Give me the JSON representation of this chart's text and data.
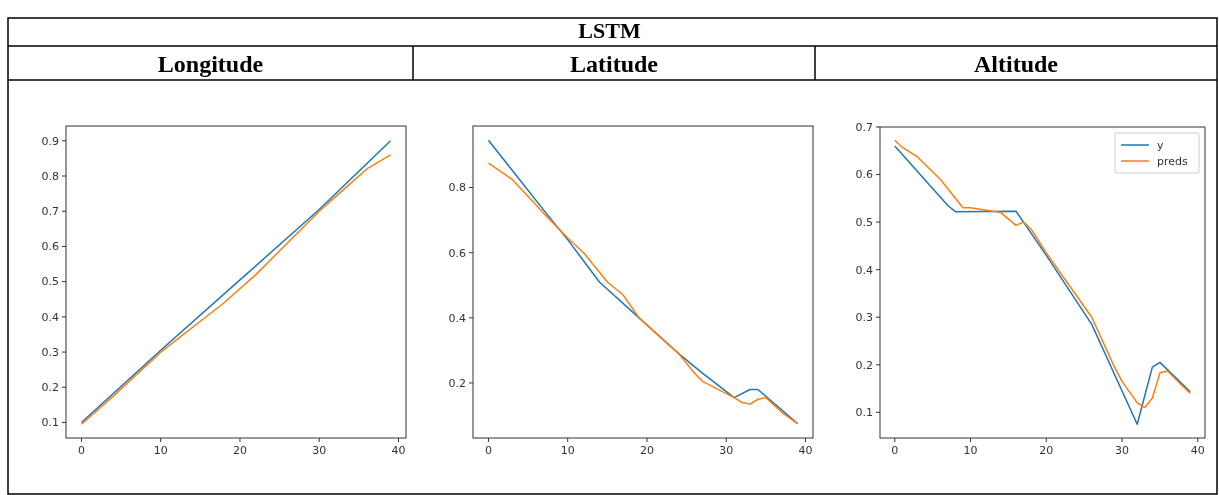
{
  "chart_data": [
    {
      "type": "line",
      "title": "Longitude",
      "annotations": [
        "LSTM"
      ],
      "xlim": [
        -1.95,
        40.95
      ],
      "xticks": [
        0,
        10,
        20,
        30,
        40
      ],
      "ylim": [
        0.056,
        0.942
      ],
      "yticks": [
        0.1,
        0.2,
        0.3,
        0.4,
        0.5,
        0.6,
        0.7,
        0.8,
        0.9
      ],
      "grid": false,
      "legend": false,
      "series": [
        {
          "color": "#1f77b4",
          "x": [
            0,
            10,
            20,
            30,
            39
          ],
          "values": [
            0.1,
            0.305,
            0.505,
            0.705,
            0.9
          ]
        },
        {
          "color": "#ff7f0e",
          "x": [
            0,
            4,
            10,
            18,
            22,
            30,
            33,
            36,
            39
          ],
          "values": [
            0.095,
            0.175,
            0.3,
            0.44,
            0.52,
            0.7,
            0.76,
            0.82,
            0.86
          ]
        }
      ]
    },
    {
      "type": "line",
      "title": "Latitude",
      "xlim": [
        -1.95,
        40.95
      ],
      "xticks": [
        0,
        10,
        20,
        30,
        40
      ],
      "ylim": [
        0.031,
        0.989
      ],
      "yticks": [
        0.2,
        0.4,
        0.6,
        0.8
      ],
      "grid": false,
      "legend": false,
      "series": [
        {
          "color": "#1f77b4",
          "x": [
            0,
            7,
            10,
            14,
            19,
            24,
            27,
            31,
            33,
            34,
            39
          ],
          "values": [
            0.945,
            0.73,
            0.64,
            0.51,
            0.4,
            0.29,
            0.23,
            0.155,
            0.18,
            0.18,
            0.075
          ]
        },
        {
          "color": "#ff7f0e",
          "x": [
            0,
            3,
            7,
            10,
            12,
            15,
            17,
            19,
            24,
            26,
            27,
            31,
            32,
            33,
            34,
            35,
            37,
            39
          ],
          "values": [
            0.875,
            0.825,
            0.72,
            0.645,
            0.6,
            0.51,
            0.47,
            0.4,
            0.29,
            0.23,
            0.205,
            0.155,
            0.14,
            0.135,
            0.15,
            0.155,
            0.11,
            0.075
          ]
        }
      ]
    },
    {
      "type": "line",
      "title": "Altitude",
      "xlim": [
        -1.95,
        40.95
      ],
      "xticks": [
        0,
        10,
        20,
        30,
        40
      ],
      "ylim": [
        0.046,
        0.7
      ],
      "yticks": [
        0.1,
        0.2,
        0.3,
        0.4,
        0.5,
        0.6,
        0.7
      ],
      "grid": false,
      "legend": "top right",
      "series": [
        {
          "name": "y",
          "color": "#1f77b4",
          "x": [
            0,
            7,
            8,
            16,
            20,
            26,
            32,
            34,
            35,
            39
          ],
          "values": [
            0.66,
            0.535,
            0.522,
            0.523,
            0.43,
            0.285,
            0.075,
            0.195,
            0.205,
            0.143
          ]
        },
        {
          "name": "preds",
          "color": "#ff7f0e",
          "x": [
            0,
            1,
            3,
            6,
            9,
            10,
            14,
            16,
            17,
            18,
            20,
            26,
            29,
            30,
            32,
            33,
            34,
            35,
            36,
            38,
            39
          ],
          "values": [
            0.672,
            0.657,
            0.637,
            0.59,
            0.53,
            0.53,
            0.52,
            0.493,
            0.5,
            0.485,
            0.435,
            0.3,
            0.195,
            0.165,
            0.12,
            0.11,
            0.13,
            0.183,
            0.187,
            0.155,
            0.14
          ]
        }
      ]
    }
  ]
}
